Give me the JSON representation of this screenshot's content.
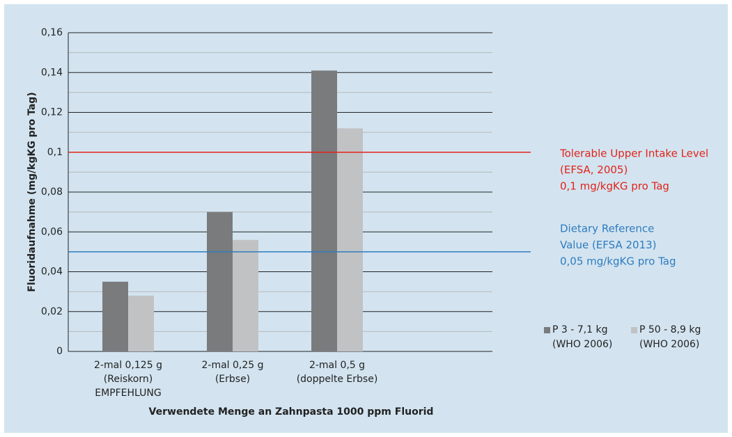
{
  "chart_data": {
    "type": "bar",
    "ylabel": "Fluoridaufnahme (mg/kgKG pro Tag)",
    "xlabel": "Verwendete Menge an Zahnpasta 1000 ppm Fluorid",
    "categories": [
      [
        "2-mal 0,125 g",
        "(Reiskorn)",
        "EMPFEHLUNG"
      ],
      [
        "2-mal 0,25 g",
        "(Erbse)"
      ],
      [
        "2-mal 0,5 g",
        "(doppelte Erbse)"
      ]
    ],
    "series": [
      {
        "name": "P 3 - 7,1 kg (WHO 2006)",
        "color": "#7a7b7d",
        "values": [
          0.035,
          0.07,
          0.141
        ]
      },
      {
        "name": "P 50 - 8,9 kg (WHO 2006)",
        "color": "#c1c2c4",
        "values": [
          0.028,
          0.056,
          0.112
        ]
      }
    ],
    "ylim": [
      0,
      0.16
    ],
    "yticks": [
      0,
      {
        "value": 0.02,
        "label": "0,02"
      },
      {
        "value": 0.04,
        "label": "0,04"
      },
      {
        "value": 0.06,
        "label": "0,06"
      },
      {
        "value": 0.08,
        "label": "0,08"
      },
      {
        "value": 0.1,
        "label": "0,1"
      },
      {
        "value": 0.12,
        "label": "0,12"
      },
      {
        "value": 0.14,
        "label": "0,14"
      },
      {
        "value": 0.16,
        "label": "0,16"
      }
    ],
    "minor_grid": [
      0.01,
      0.03,
      0.05,
      0.07,
      0.09,
      0.11,
      0.13,
      0.15
    ],
    "grid": true,
    "legend": "lower right",
    "reference_lines": [
      {
        "value": 0.1,
        "color": "#e2231a",
        "lines": [
          "Tolerable Upper Intake Level",
          "(EFSA, 2005)",
          "0,1 mg/kgKG pro Tag"
        ]
      },
      {
        "value": 0.05,
        "color": "#2f7bbf",
        "lines": [
          "Dietary Reference",
          "Value (EFSA 2013)",
          "0,05 mg/kgKG pro Tag"
        ]
      }
    ]
  }
}
